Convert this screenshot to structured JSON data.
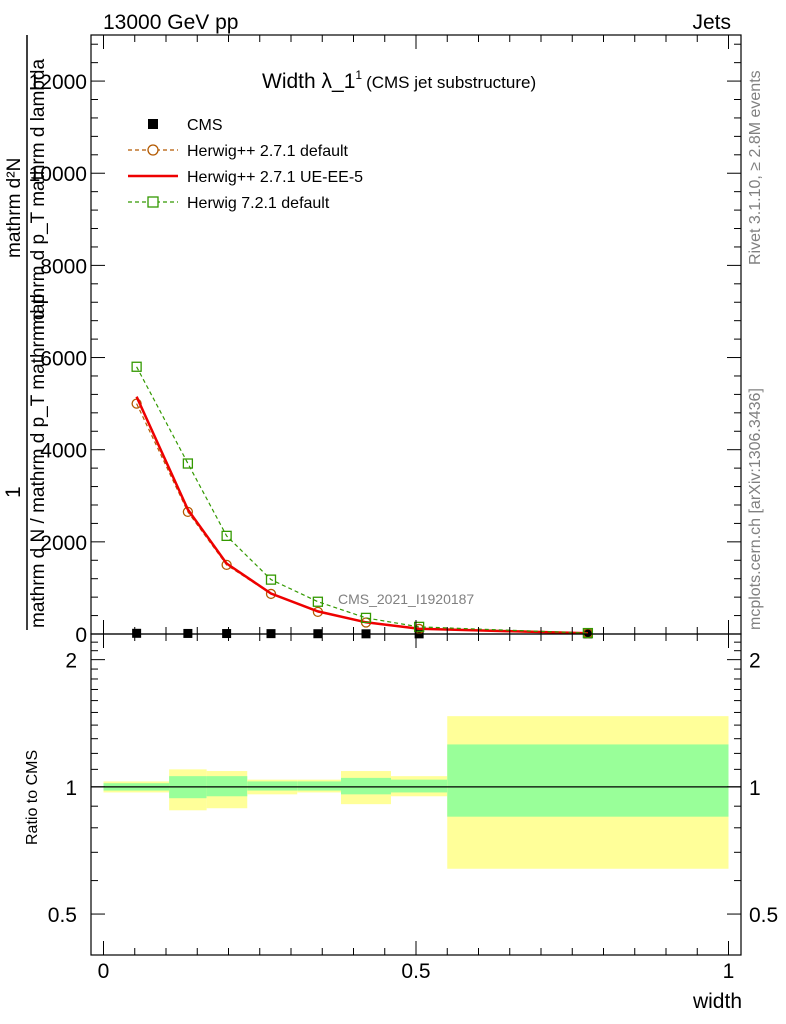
{
  "header": {
    "left": "13000 GeV pp",
    "right": "Jets"
  },
  "side": {
    "top": "Rivet 3.1.10, ≥ 2.8M events",
    "bottom": "mcplots.cern.ch [arXiv:1306.3436]"
  },
  "chart_data": [
    {
      "type": "line",
      "title": "Width λ_1",
      "title_sup": "1",
      "subtitle": "(CMS jet substructure)",
      "watermark": "CMS_2021_I1920187",
      "ylabel_numerator": "1",
      "ylabel_numerator_line": "mathrm d²N",
      "ylabel_denominator_line1": "mathrm d N / mathrm d p_T mathrm d p",
      "ylabel_denominator_line2": "mathrm d p_T mathrm d lambda",
      "xlim": [
        -0.02,
        1.02
      ],
      "ylim": [
        0,
        13000
      ],
      "yticks": [
        0,
        2000,
        4000,
        6000,
        8000,
        10000,
        12000
      ],
      "ytick_labels": [
        "0",
        "2000",
        "4000",
        "6000",
        "8000",
        "10000",
        "12000"
      ],
      "legend_position": "top-left",
      "bins": [
        0.0,
        0.105,
        0.165,
        0.23,
        0.31,
        0.38,
        0.46,
        0.55,
        1.0
      ],
      "x": [
        0.053,
        0.135,
        0.197,
        0.268,
        0.343,
        0.42,
        0.505,
        0.775
      ],
      "series": [
        {
          "name": "CMS",
          "color": "#000000",
          "marker": "square-filled",
          "line": "none",
          "values": [
            15,
            12,
            10,
            8,
            6,
            4,
            3,
            2
          ]
        },
        {
          "name": "Herwig++ 2.7.1 default",
          "color": "#b35900",
          "marker": "circle-open",
          "line": "dashed",
          "values": [
            5000,
            2650,
            1500,
            870,
            480,
            250,
            110,
            15
          ]
        },
        {
          "name": "Herwig++ 2.7.1 UE-EE-5",
          "color": "#ee0000",
          "marker": "none",
          "line": "solid",
          "values": [
            5150,
            2700,
            1530,
            880,
            490,
            255,
            112,
            15
          ]
        },
        {
          "name": "Herwig 7.2.1 default",
          "color": "#339900",
          "marker": "square-open",
          "line": "dashed",
          "values": [
            5800,
            3700,
            2130,
            1180,
            700,
            350,
            155,
            20
          ]
        }
      ]
    },
    {
      "type": "area",
      "ylabel": "Ratio to CMS",
      "xlabel": "width",
      "xlim": [
        -0.02,
        1.02
      ],
      "ylim": [
        0.4,
        2.3
      ],
      "xticks": [
        0,
        0.5,
        1
      ],
      "xtick_labels": [
        "0",
        "0.5",
        "1"
      ],
      "yticks": [
        0.5,
        1,
        2
      ],
      "ytick_labels": [
        "0.5",
        "1",
        "2"
      ],
      "bins": [
        0.0,
        0.105,
        0.165,
        0.23,
        0.31,
        0.38,
        0.46,
        0.55,
        1.0
      ],
      "band_colors": {
        "inner": "#99ff99",
        "outer": "#ffff99"
      },
      "inner_low": [
        0.98,
        0.94,
        0.95,
        0.98,
        0.98,
        0.96,
        0.97,
        0.85
      ],
      "inner_high": [
        1.02,
        1.06,
        1.06,
        1.03,
        1.03,
        1.05,
        1.04,
        1.26
      ],
      "outer_low": [
        0.97,
        0.88,
        0.89,
        0.96,
        0.97,
        0.91,
        0.95,
        0.64
      ],
      "outer_high": [
        1.03,
        1.1,
        1.09,
        1.04,
        1.04,
        1.09,
        1.06,
        1.47
      ]
    }
  ]
}
